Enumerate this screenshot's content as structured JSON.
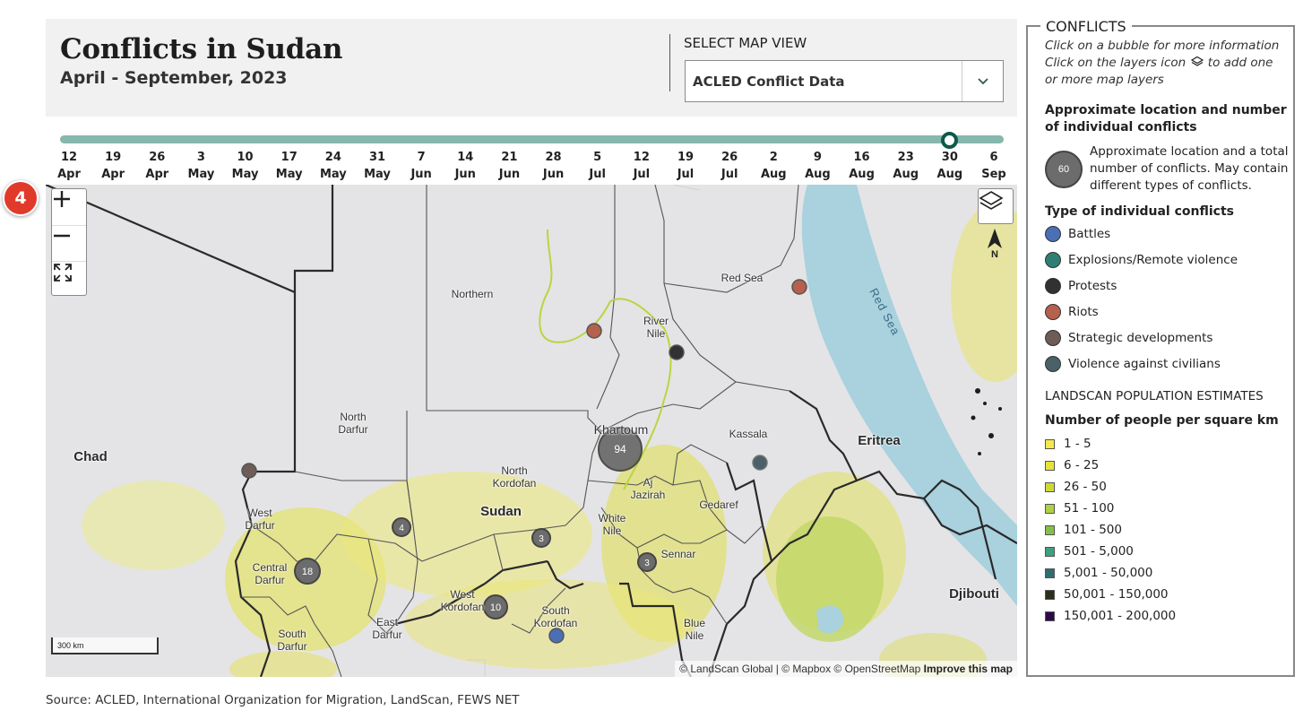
{
  "header": {
    "title": "Conflicts in Sudan",
    "subtitle": "April - September, 2023",
    "select_label": "SELECT MAP VIEW",
    "select_value": "ACLED Conflict Data"
  },
  "timeline": {
    "ticks": [
      [
        "12",
        "Apr"
      ],
      [
        "19",
        "Apr"
      ],
      [
        "26",
        "Apr"
      ],
      [
        "3",
        "May"
      ],
      [
        "10",
        "May"
      ],
      [
        "17",
        "May"
      ],
      [
        "24",
        "May"
      ],
      [
        "31",
        "May"
      ],
      [
        "7",
        "Jun"
      ],
      [
        "14",
        "Jun"
      ],
      [
        "21",
        "Jun"
      ],
      [
        "28",
        "Jun"
      ],
      [
        "5",
        "Jul"
      ],
      [
        "12",
        "Jul"
      ],
      [
        "19",
        "Jul"
      ],
      [
        "26",
        "Jul"
      ],
      [
        "2",
        "Aug"
      ],
      [
        "9",
        "Aug"
      ],
      [
        "16",
        "Aug"
      ],
      [
        "23",
        "Aug"
      ],
      [
        "30",
        "Aug"
      ],
      [
        "6",
        "Sep"
      ]
    ],
    "selected_index": 20
  },
  "map": {
    "labels": {
      "chad": "Chad",
      "sudan": "Sudan",
      "eritrea": "Eritrea",
      "djibouti": "Djibouti",
      "red_sea_water": "Red Sea",
      "northern": "Northern",
      "red_sea_state": "Red Sea",
      "river_nile": "River\nNile",
      "north_darfur": "North\nDarfur",
      "khartoum": "Khartoum",
      "kassala": "Kassala",
      "north_kordofan": "North\nKordofan",
      "aj_jazirah": "Aj\nJazirah",
      "gedaref": "Gedaref",
      "white_nile": "White\nNile",
      "sennar": "Sennar",
      "west_darfur": "West\nDarfur",
      "central_darfur": "Central\nDarfur",
      "west_kordofan": "West\nKordofan",
      "south_kordofan": "South\nKordofan",
      "blue_nile": "Blue\nNile",
      "south_darfur": "South\nDarfur",
      "east_darfur": "East\nDarfur"
    },
    "clusters": [
      {
        "count": "94",
        "name": "khartoum-cluster"
      },
      {
        "count": "18",
        "name": "central-darfur-cluster"
      },
      {
        "count": "10",
        "name": "west-kordofan-cluster"
      },
      {
        "count": "4",
        "name": "north-darfur-cluster"
      },
      {
        "count": "3",
        "name": "north-kordofan-cluster"
      },
      {
        "count": "3",
        "name": "sennar-cluster"
      }
    ],
    "scale_label": "300 km",
    "attribution": "© LandScan Global | © Mapbox © OpenStreetMap",
    "improve_link": "Improve this map",
    "north_label": "N",
    "step_badge": "4"
  },
  "legend": {
    "title": "CONFLICTS",
    "help_line1": "Click on a bubble for more information",
    "help_line2a": "Click on the layers icon",
    "help_line2b": "to add one or more map layers",
    "approx_heading": "Approximate location and number of individual conflicts",
    "bubble_sample": "60",
    "bubble_desc": "Approximate location and a total number of conflicts. May contain different types of conflicts.",
    "types_heading": "Type of individual conflicts",
    "types": [
      {
        "label": "Battles",
        "color": "#4a6fb5"
      },
      {
        "label": "Explosions/Remote violence",
        "color": "#2e7f73"
      },
      {
        "label": "Protests",
        "color": "#2f3133"
      },
      {
        "label": "Riots",
        "color": "#b5614d"
      },
      {
        "label": "Strategic developments",
        "color": "#6e5c56"
      },
      {
        "label": "Violence against civilians",
        "color": "#4a6168"
      }
    ],
    "landscan_caption": "LANDSCAN POPULATION ESTIMATES",
    "pop_heading": "Number of people per square km",
    "pop_ranges": [
      {
        "label": "1 - 5",
        "color": "#f4e94a"
      },
      {
        "label": "6 - 25",
        "color": "#e6e23a"
      },
      {
        "label": "26 - 50",
        "color": "#cfd936"
      },
      {
        "label": "51 - 100",
        "color": "#aed143"
      },
      {
        "label": "101 - 500",
        "color": "#84bf4c"
      },
      {
        "label": "501 - 5,000",
        "color": "#3f9f7f"
      },
      {
        "label": "5,001 - 50,000",
        "color": "#2d6f70"
      },
      {
        "label": "50,001 - 150,000",
        "color": "#2a2f1c"
      },
      {
        "label": "150,001 - 200,000",
        "color": "#2b0a4a"
      }
    ]
  },
  "source": "Source: ACLED, International Organization for Migration, LandScan, FEWS NET"
}
